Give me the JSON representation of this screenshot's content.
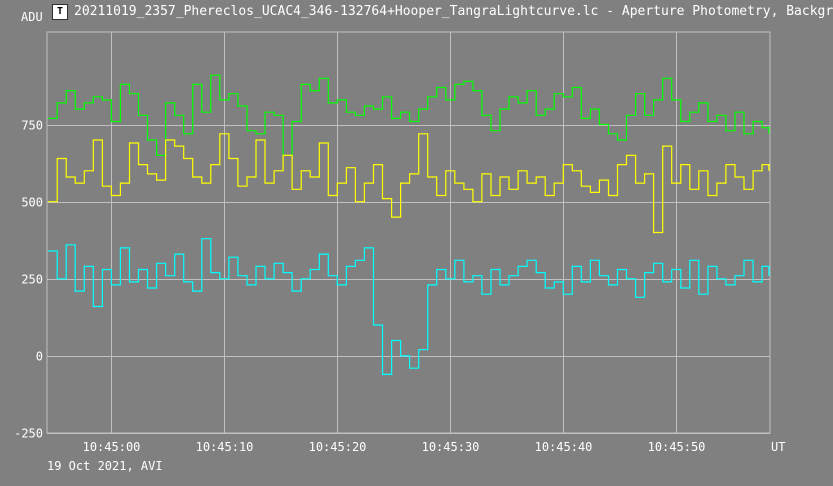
{
  "window": {
    "title": "20211019_2357_Phereclos_UCAC4_346-132764+Hooper_TangraLightcurve.lc - Aperture Photometry, Backgr",
    "icon": "tangra-app-icon"
  },
  "footer": {
    "text": "19 Oct 2021, AVI"
  },
  "colors": {
    "background": "#808080",
    "grid": "#c0c0c0",
    "axis": "#ffffff"
  },
  "chart_data": {
    "type": "line",
    "ylabel": "ADU",
    "xlabel": "UT",
    "ylim": [
      -250,
      1050
    ],
    "yticks": [
      {
        "value": 750,
        "label": "750"
      },
      {
        "value": 500,
        "label": "500"
      },
      {
        "value": 250,
        "label": "250"
      },
      {
        "value": 0,
        "label": "0"
      },
      {
        "value": -250,
        "label": "-250"
      }
    ],
    "xlim": [
      -5.7,
      58.3
    ],
    "xticks": [
      {
        "value": 0,
        "label": "10:45:00"
      },
      {
        "value": 10,
        "label": "10:45:10"
      },
      {
        "value": 20,
        "label": "10:45:20"
      },
      {
        "value": 30,
        "label": "10:45:30"
      },
      {
        "value": 40,
        "label": "10:45:40"
      },
      {
        "value": 50,
        "label": "10:45:50"
      }
    ],
    "grid": true,
    "series": [
      {
        "color": "#00ff00",
        "x": [
          -5.6,
          -4.8,
          -4,
          -3.2,
          -2.4,
          -1.6,
          -0.8,
          0,
          0.8,
          1.6,
          2.4,
          3.2,
          4,
          4.8,
          5.6,
          6.4,
          7.2,
          8,
          8.8,
          9.6,
          10.4,
          11.2,
          12,
          12.8,
          13.6,
          14.4,
          15.2,
          16,
          16.8,
          17.6,
          18.4,
          19.2,
          20,
          20.8,
          21.6,
          22.4,
          23.2,
          24,
          24.8,
          25.6,
          26.4,
          27.2,
          28,
          28.8,
          29.6,
          30.4,
          31.2,
          32,
          32.8,
          33.6,
          34.4,
          35.2,
          36,
          36.8,
          37.6,
          38.4,
          39.2,
          40,
          40.8,
          41.6,
          42.4,
          43.2,
          44,
          44.8,
          45.6,
          46.4,
          47.2,
          48,
          48.8,
          49.6,
          50.4,
          51.2,
          52,
          52.8,
          53.6,
          54.4,
          55.2,
          56,
          56.8,
          57.6,
          58.2
        ],
        "y": [
          770,
          820,
          860,
          800,
          820,
          840,
          830,
          760,
          880,
          850,
          780,
          700,
          650,
          820,
          780,
          720,
          880,
          790,
          910,
          830,
          850,
          810,
          730,
          720,
          790,
          780,
          650,
          760,
          880,
          860,
          900,
          820,
          830,
          790,
          780,
          810,
          800,
          840,
          770,
          790,
          760,
          800,
          840,
          870,
          830,
          880,
          890,
          860,
          780,
          730,
          800,
          840,
          820,
          860,
          780,
          800,
          850,
          840,
          870,
          770,
          800,
          750,
          720,
          700,
          780,
          850,
          780,
          830,
          900,
          830,
          760,
          790,
          820,
          760,
          780,
          730,
          790,
          720,
          760,
          740,
          720
        ]
      },
      {
        "color": "#ffff00",
        "x": [
          -5.6,
          -4.8,
          -4,
          -3.2,
          -2.4,
          -1.6,
          -0.8,
          0,
          0.8,
          1.6,
          2.4,
          3.2,
          4,
          4.8,
          5.6,
          6.4,
          7.2,
          8,
          8.8,
          9.6,
          10.4,
          11.2,
          12,
          12.8,
          13.6,
          14.4,
          15.2,
          16,
          16.8,
          17.6,
          18.4,
          19.2,
          20,
          20.8,
          21.6,
          22.4,
          23.2,
          24,
          24.8,
          25.6,
          26.4,
          27.2,
          28,
          28.8,
          29.6,
          30.4,
          31.2,
          32,
          32.8,
          33.6,
          34.4,
          35.2,
          36,
          36.8,
          37.6,
          38.4,
          39.2,
          40,
          40.8,
          41.6,
          42.4,
          43.2,
          44,
          44.8,
          45.6,
          46.4,
          47.2,
          48,
          48.8,
          49.6,
          50.4,
          51.2,
          52,
          52.8,
          53.6,
          54.4,
          55.2,
          56,
          56.8,
          57.6,
          58.2
        ],
        "y": [
          500,
          640,
          580,
          560,
          600,
          700,
          550,
          520,
          560,
          690,
          620,
          590,
          570,
          700,
          680,
          640,
          580,
          560,
          620,
          720,
          640,
          550,
          580,
          700,
          560,
          600,
          650,
          540,
          600,
          580,
          690,
          520,
          560,
          610,
          500,
          560,
          620,
          510,
          450,
          560,
          590,
          720,
          580,
          520,
          600,
          560,
          540,
          500,
          590,
          520,
          580,
          540,
          600,
          560,
          580,
          520,
          560,
          620,
          600,
          550,
          530,
          570,
          520,
          620,
          650,
          560,
          590,
          400,
          680,
          560,
          620,
          540,
          600,
          520,
          560,
          620,
          580,
          540,
          600,
          620,
          600
        ]
      },
      {
        "color": "#00ffff",
        "x": [
          -5.6,
          -4.8,
          -4,
          -3.2,
          -2.4,
          -1.6,
          -0.8,
          0,
          0.8,
          1.6,
          2.4,
          3.2,
          4,
          4.8,
          5.6,
          6.4,
          7.2,
          8,
          8.8,
          9.6,
          10.4,
          11.2,
          12,
          12.8,
          13.6,
          14.4,
          15.2,
          16,
          16.8,
          17.6,
          18.4,
          19.2,
          20,
          20.8,
          21.6,
          22.4,
          23.2,
          24,
          24.8,
          25.6,
          26.4,
          27.2,
          28,
          28.8,
          29.6,
          30.4,
          31.2,
          32,
          32.8,
          33.6,
          34.4,
          35.2,
          36,
          36.8,
          37.6,
          38.4,
          39.2,
          40,
          40.8,
          41.6,
          42.4,
          43.2,
          44,
          44.8,
          45.6,
          46.4,
          47.2,
          48,
          48.8,
          49.6,
          50.4,
          51.2,
          52,
          52.8,
          53.6,
          54.4,
          55.2,
          56,
          56.8,
          57.6,
          58.2
        ],
        "y": [
          340,
          250,
          360,
          210,
          290,
          160,
          280,
          230,
          350,
          240,
          280,
          220,
          300,
          260,
          330,
          240,
          210,
          380,
          270,
          250,
          320,
          260,
          230,
          290,
          250,
          300,
          270,
          210,
          250,
          280,
          330,
          260,
          230,
          290,
          310,
          350,
          100,
          -60,
          50,
          0,
          -40,
          20,
          230,
          280,
          250,
          310,
          240,
          260,
          200,
          280,
          230,
          260,
          290,
          310,
          270,
          220,
          240,
          200,
          290,
          240,
          310,
          260,
          230,
          280,
          250,
          190,
          270,
          300,
          240,
          280,
          220,
          310,
          200,
          290,
          250,
          230,
          260,
          310,
          240,
          290,
          260
        ]
      }
    ]
  }
}
